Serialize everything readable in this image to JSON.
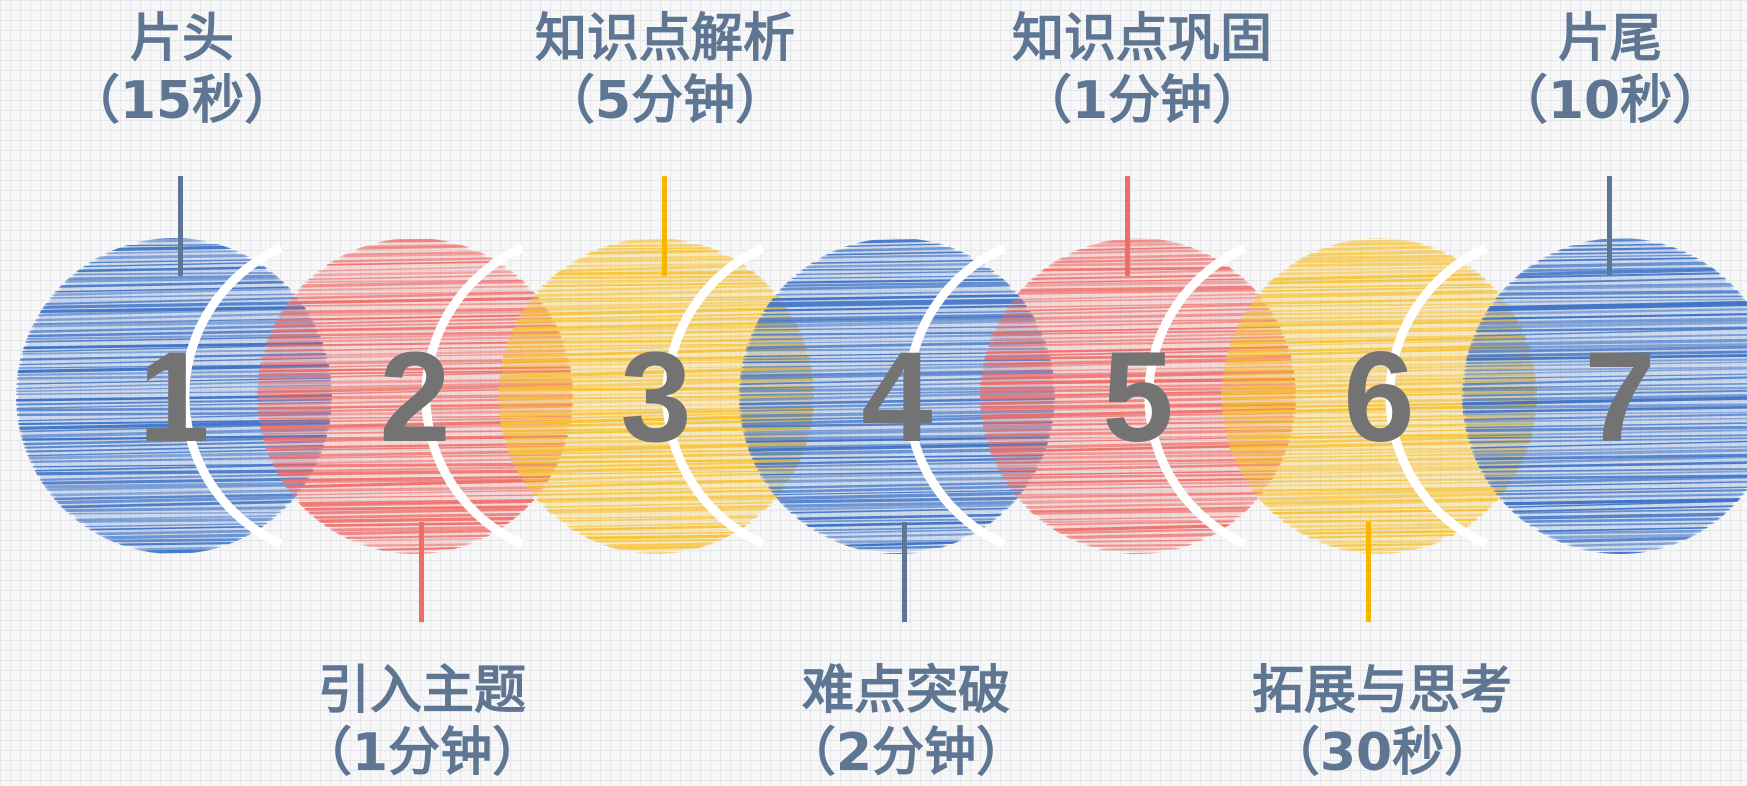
{
  "steps": [
    {
      "number": "1",
      "title": "片头",
      "duration": "（15秒）",
      "color": "blue"
    },
    {
      "number": "2",
      "title": "引入主题",
      "duration": "（1分钟）",
      "color": "red"
    },
    {
      "number": "3",
      "title": "知识点解析",
      "duration": "（5分钟）",
      "color": "yellow"
    },
    {
      "number": "4",
      "title": "难点突破",
      "duration": "（2分钟）",
      "color": "blue"
    },
    {
      "number": "5",
      "title": "知识点巩固",
      "duration": "（1分钟）",
      "color": "red"
    },
    {
      "number": "6",
      "title": "拓展与思考",
      "duration": "（30秒）",
      "color": "yellow"
    },
    {
      "number": "7",
      "title": "片尾",
      "duration": "（10秒）",
      "color": "blue"
    }
  ],
  "palette": {
    "blue": "#3a70c6",
    "red": "#ef6d67",
    "yellow": "#f7c233",
    "number": "#737373",
    "label": "#5e7692",
    "stem_blue": "#5e7692",
    "stem_red": "#ef6d67",
    "stem_yellow": "#f7b500"
  }
}
